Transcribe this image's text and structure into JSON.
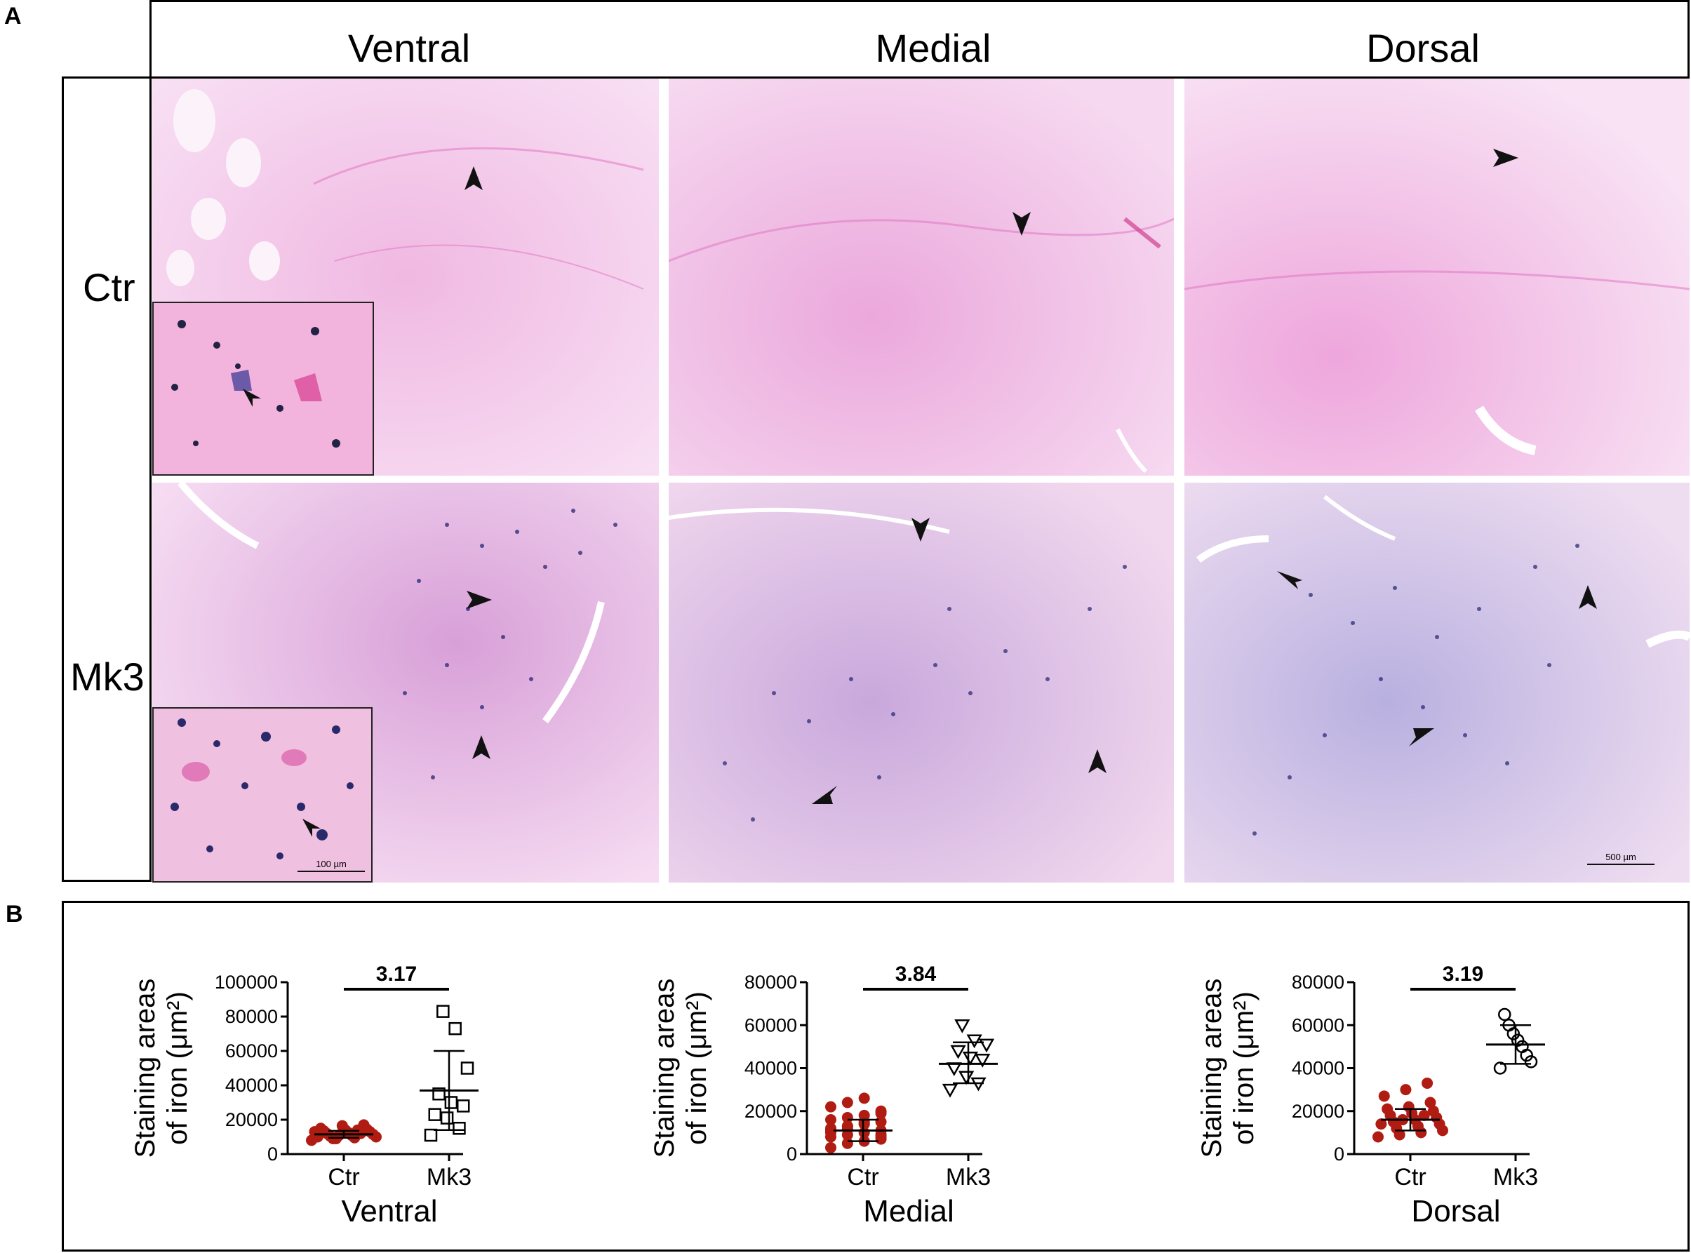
{
  "panel_a": {
    "letter": "A",
    "columns": [
      "Ventral",
      "Medial",
      "Dorsal"
    ],
    "rows": [
      "Ctr",
      "Mk3"
    ],
    "inset_scale_label": "100 µm",
    "main_scale_label": "500 µm",
    "colors": {
      "tissue_pink": "#f2c9ea",
      "iron_stain": "#2a2a7a",
      "ctr_pink": "#e886c8"
    }
  },
  "panel_b": {
    "letter": "B"
  },
  "chart_data": [
    {
      "type": "scatter",
      "xlabel": "Ventral",
      "ylabel": "Staining areas of iron (μm²)",
      "categories": [
        "Ctr",
        "Mk3"
      ],
      "ylim": [
        0,
        100000
      ],
      "yticks": [
        0,
        20000,
        40000,
        60000,
        80000,
        100000
      ],
      "significance": "3.17",
      "series": [
        {
          "name": "Ctr",
          "marker": "filled-circle",
          "color": "#b01c12",
          "mean": 11500,
          "sd_low": 9500,
          "sd_high": 13500,
          "values": [
            8000,
            9000,
            9500,
            10000,
            10500,
            11000,
            11500,
            12000,
            12500,
            13000,
            13500,
            14000,
            14500,
            15000,
            16500,
            17000,
            10000,
            11000,
            12000,
            13000,
            9000,
            14000
          ]
        },
        {
          "name": "Mk3",
          "marker": "open-square",
          "color": "#000000",
          "mean": 37000,
          "sd_low": 14000,
          "sd_high": 60000,
          "values": [
            11000,
            15000,
            21000,
            23000,
            28000,
            30000,
            35000,
            50000,
            73000,
            83000
          ]
        }
      ]
    },
    {
      "type": "scatter",
      "xlabel": "Medial",
      "ylabel": "Staining areas of iron (μm²)",
      "categories": [
        "Ctr",
        "Mk3"
      ],
      "ylim": [
        0,
        80000
      ],
      "yticks": [
        0,
        20000,
        40000,
        60000,
        80000
      ],
      "significance": "3.84",
      "series": [
        {
          "name": "Ctr",
          "marker": "filled-circle",
          "color": "#b01c12",
          "mean": 11000,
          "sd_low": 6000,
          "sd_high": 16000,
          "values": [
            3000,
            5000,
            6000,
            7000,
            8000,
            9000,
            10000,
            11000,
            12000,
            13000,
            14000,
            15000,
            16000,
            17000,
            18000,
            20000,
            22000,
            24000,
            26000,
            9000,
            11000,
            13000,
            15000,
            8000,
            10000,
            12000,
            14000,
            19000
          ]
        },
        {
          "name": "Mk3",
          "marker": "open-triangle-down",
          "color": "#000000",
          "mean": 42000,
          "sd_low": 33000,
          "sd_high": 52000,
          "values": [
            30000,
            33000,
            36000,
            40000,
            44000,
            45000,
            48000,
            51000,
            53000,
            60000
          ]
        }
      ]
    },
    {
      "type": "scatter",
      "xlabel": "Dorsal",
      "ylabel": "Staining areas of iron (μm²)",
      "categories": [
        "Ctr",
        "Mk3"
      ],
      "ylim": [
        0,
        80000
      ],
      "yticks": [
        0,
        20000,
        40000,
        60000,
        80000
      ],
      "significance": "3.19",
      "series": [
        {
          "name": "Ctr",
          "marker": "filled-circle",
          "color": "#b01c12",
          "mean": 16000,
          "sd_low": 11000,
          "sd_high": 21000,
          "values": [
            8000,
            9000,
            10000,
            11000,
            12000,
            13000,
            14000,
            15000,
            16000,
            17000,
            18000,
            19000,
            20000,
            21000,
            22000,
            24000,
            27000,
            30000,
            33000,
            14000,
            16000,
            18000
          ]
        },
        {
          "name": "Mk3",
          "marker": "open-circle",
          "color": "#000000",
          "mean": 51000,
          "sd_low": 42000,
          "sd_high": 60000,
          "values": [
            40000,
            43000,
            46000,
            50000,
            53000,
            56000,
            60000,
            65000
          ]
        }
      ]
    }
  ]
}
